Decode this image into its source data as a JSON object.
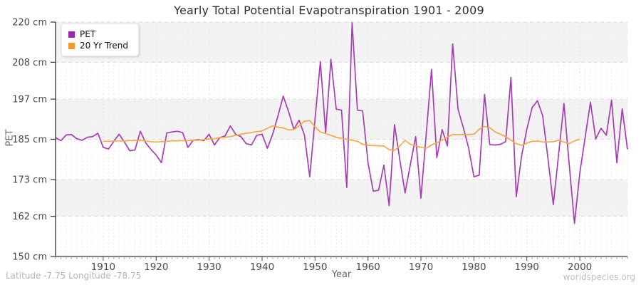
{
  "header": {
    "title": "Yearly Total Potential Evapotranspiration 1901 - 2009"
  },
  "legend": {
    "items": [
      {
        "label": "PET",
        "color": "#9C27B0"
      },
      {
        "label": "20 Yr Trend",
        "color": "#F59B23"
      }
    ]
  },
  "axes": {
    "y_label": "PET",
    "x_label": "Year"
  },
  "footer": {
    "left": "Latitude -7.75 Longitude -78.75",
    "right": "worldspecies.org"
  },
  "chart_data": {
    "type": "line",
    "title": "Yearly Total Potential Evapotranspiration 1901 - 2009",
    "xlabel": "Year",
    "ylabel": "PET",
    "x_range": [
      1901,
      2009
    ],
    "ylim": [
      150,
      220
    ],
    "grid": "yearly dashed vertical minor gridlines; dashed horizontal lines at y ticks; alternating light-gray bands",
    "legend_position": "top-left",
    "y_ticks": [
      {
        "value": 150,
        "label": "150 cm"
      },
      {
        "value": 162,
        "label": "162 cm"
      },
      {
        "value": 173,
        "label": "173 cm"
      },
      {
        "value": 185,
        "label": "185 cm"
      },
      {
        "value": 197,
        "label": "197 cm"
      },
      {
        "value": 208,
        "label": "208 cm"
      },
      {
        "value": 220,
        "label": "220 cm"
      }
    ],
    "x_tick_values": [
      1910,
      1920,
      1930,
      1940,
      1950,
      1960,
      1970,
      1980,
      1990,
      2000
    ],
    "gray_bands": [
      [
        220,
        208
      ],
      [
        197,
        185
      ],
      [
        173,
        162
      ]
    ],
    "colors": {
      "band": "#f3f3f3",
      "grid": "#dedede",
      "axis": "#333333"
    },
    "series": [
      {
        "name": "PET",
        "color": "#A73CB5",
        "start_year": 1901,
        "values": [
          185.5,
          184.6,
          186.3,
          186.4,
          185.2,
          184.7,
          185.6,
          185.8,
          186.8,
          182.6,
          182.1,
          184.4,
          186.5,
          184.2,
          181.6,
          181.8,
          187.4,
          184.0,
          182.0,
          180.3,
          178.0,
          186.9,
          187.2,
          187.4,
          187.0,
          182.6,
          184.7,
          184.9,
          184.6,
          186.5,
          183.3,
          185.5,
          186.0,
          189.0,
          186.5,
          185.8,
          183.7,
          183.3,
          186.2,
          186.5,
          182.3,
          186.5,
          192.0,
          197.9,
          193.3,
          188.0,
          190.7,
          186.2,
          173.8,
          191.0,
          208.2,
          187.0,
          208.9,
          194.0,
          193.7,
          170.6,
          219.8,
          193.7,
          193.5,
          178.0,
          169.5,
          169.8,
          177.3,
          165.2,
          189.4,
          179.0,
          169.0,
          177.5,
          185.8,
          167.4,
          186.7,
          205.9,
          179.5,
          187.9,
          183.0,
          213.5,
          194.0,
          188.5,
          182.5,
          173.8,
          174.3,
          198.4,
          183.4,
          183.3,
          183.5,
          184.3,
          203.5,
          167.9,
          180.0,
          188.0,
          194.5,
          196.5,
          192.0,
          179.0,
          165.5,
          180.5,
          195.7,
          177.5,
          159.9,
          175.0,
          185.5,
          196.1,
          185.1,
          188.3,
          186.2,
          196.7,
          178.0,
          194.1,
          182.0
        ]
      },
      {
        "name": "20 Yr Trend",
        "color": "#F9A743",
        "start_year": 1910,
        "values": [
          184.4,
          184.4,
          184.5,
          184.5,
          184.5,
          184.6,
          184.6,
          184.7,
          184.5,
          184.3,
          184.2,
          184.3,
          184.4,
          184.5,
          184.5,
          184.6,
          184.6,
          184.7,
          184.7,
          184.9,
          185.1,
          185.2,
          185.5,
          185.6,
          185.8,
          186.2,
          186.5,
          186.8,
          187.0,
          187.3,
          187.5,
          188.3,
          189.0,
          188.6,
          188.4,
          187.8,
          187.9,
          189.0,
          190.4,
          190.6,
          188.7,
          187.2,
          186.7,
          186.2,
          185.6,
          185.3,
          185.0,
          184.7,
          184.4,
          183.5,
          183.2,
          183.1,
          183.1,
          183.0,
          181.9,
          181.7,
          183.0,
          184.7,
          183.5,
          183.0,
          182.6,
          182.3,
          183.3,
          184.0,
          184.7,
          185.7,
          186.4,
          186.4,
          186.4,
          186.4,
          186.5,
          188.0,
          188.8,
          188.5,
          187.2,
          186.5,
          185.8,
          184.7,
          183.7,
          183.2,
          183.8,
          184.4,
          184.5,
          184.2,
          184.2,
          184.3,
          184.7,
          184.2,
          183.7,
          184.5,
          185.0
        ]
      }
    ]
  }
}
